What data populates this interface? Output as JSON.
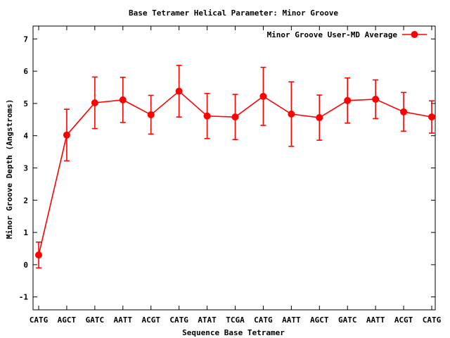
{
  "chart_data": {
    "type": "line",
    "title": "Base Tetramer Helical Parameter: Minor Groove",
    "xlabel": "Sequence Base Tetramer",
    "ylabel": "Minor Groove Depth (Angstroms)",
    "categories": [
      "CATG",
      "AGCT",
      "GATC",
      "AATT",
      "ACGT",
      "CATG",
      "ATAT",
      "TCGA",
      "CATG",
      "AATT",
      "AGCT",
      "GATC",
      "AATT",
      "ACGT",
      "CATG"
    ],
    "series": [
      {
        "name": "Minor Groove User-MD Average",
        "values": [
          0.3,
          4.02,
          5.02,
          5.11,
          4.65,
          5.38,
          4.61,
          4.58,
          5.22,
          4.67,
          4.56,
          5.09,
          5.13,
          4.74,
          4.58
        ],
        "errors": [
          0.4,
          0.8,
          0.8,
          0.7,
          0.6,
          0.8,
          0.7,
          0.7,
          0.9,
          1.0,
          0.7,
          0.7,
          0.6,
          0.6,
          0.5
        ],
        "color": "#ff0000"
      }
    ],
    "ylim": [
      -1.4,
      7.4
    ],
    "yticks": [
      -1,
      0,
      1,
      2,
      3,
      4,
      5,
      6,
      7
    ],
    "legend_position": "top-right",
    "grid": false
  }
}
